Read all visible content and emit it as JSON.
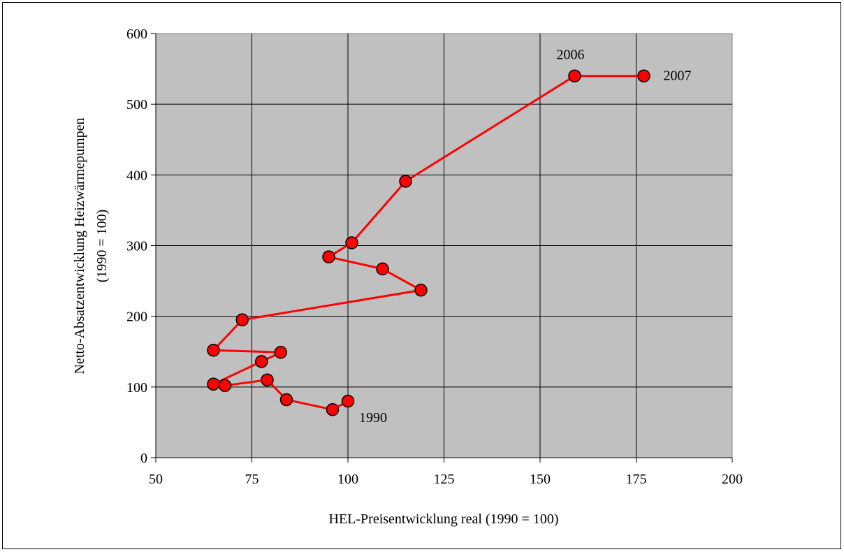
{
  "chart_data": {
    "type": "line",
    "xlabel": "HEL-Preisentwicklung real (1990 = 100)",
    "ylabel_lines": [
      "Netto-Absatzentwicklung Heizwärmepumpen",
      "(1990 = 100)"
    ],
    "xlim": [
      50,
      200
    ],
    "ylim": [
      0,
      600
    ],
    "xticks": [
      "50",
      "75",
      "100",
      "125",
      "150",
      "175",
      "200"
    ],
    "yticks": [
      "0",
      "100",
      "200",
      "300",
      "400",
      "500",
      "600"
    ],
    "grid": true,
    "plot_background": "#c0c0c0",
    "series": [
      {
        "color": "#ff0000",
        "marker_color": "#ff0000",
        "points": [
          {
            "x": 100,
            "y": 80
          },
          {
            "x": 96,
            "y": 68
          },
          {
            "x": 84,
            "y": 82
          },
          {
            "x": 79,
            "y": 110
          },
          {
            "x": 68,
            "y": 102
          },
          {
            "x": 65,
            "y": 104
          },
          {
            "x": 77.5,
            "y": 136
          },
          {
            "x": 82.5,
            "y": 149
          },
          {
            "x": 65,
            "y": 152
          },
          {
            "x": 72.5,
            "y": 195
          },
          {
            "x": 119,
            "y": 237
          },
          {
            "x": 109,
            "y": 267
          },
          {
            "x": 95,
            "y": 284
          },
          {
            "x": 101,
            "y": 304
          },
          {
            "x": 115,
            "y": 391
          },
          {
            "x": 159,
            "y": 540
          },
          {
            "x": 177,
            "y": 540
          }
        ]
      }
    ],
    "annotations": [
      {
        "text": "1990",
        "x": 100,
        "y": 80
      },
      {
        "text": "2006",
        "x": 159,
        "y": 540
      },
      {
        "text": "2007",
        "x": 177,
        "y": 540
      }
    ]
  }
}
